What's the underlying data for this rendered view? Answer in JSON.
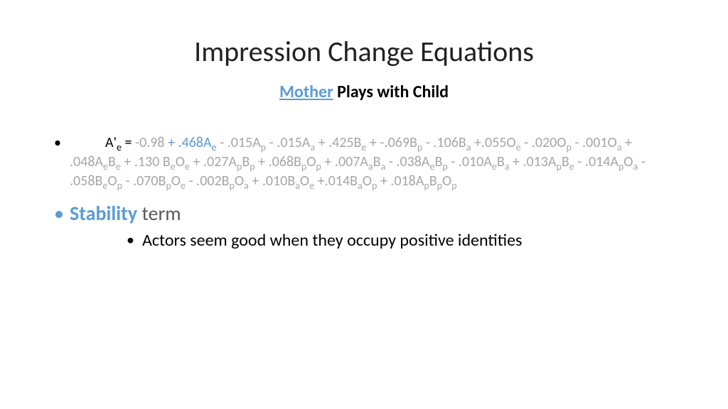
{
  "colors": {
    "accent_blue": "#5b9bd5",
    "gray_text": "#a6a6a6",
    "dark_gray": "#595959",
    "black": "#000000",
    "background": "#ffffff"
  },
  "title": "Impression Change Equations",
  "subtitle": {
    "highlighted": "Mother",
    "rest": " Plays with Child"
  },
  "equation": {
    "lhs": "A'",
    "lhs_sub": "e",
    "equals": " = ",
    "constant": "-0.98",
    "highlighted_term": " + .468A",
    "highlighted_sub": "e",
    "rest_html": " - .015A<sub>p</sub> - .015A<sub>a</sub> + .425B<sub>e</sub> + -.069B<sub>p</sub> - .106B<sub>a</sub> +.055O<sub>e</sub> - .020O<sub>p</sub> - .001O<sub>a</sub> + .048A<sub>e</sub>B<sub>e</sub> + .130 B<sub>e</sub>O<sub>e</sub> + .027A<sub>p</sub>B<sub>p</sub> + .068B<sub>p</sub>O<sub>p</sub> + .007A<sub>a</sub>B<sub>a</sub> - .038A<sub>e</sub>B<sub>p</sub> - .010A<sub>e</sub>B<sub>a</sub> + .013A<sub>p</sub>B<sub>e</sub> - .014A<sub>p</sub>O<sub>a</sub> - .058B<sub>e</sub>O<sub>p</sub> - .070B<sub>p</sub>O<sub>e</sub> - .002B<sub>p</sub>O<sub>a</sub> + .010B<sub>a</sub>O<sub>e</sub> +.014B<sub>a</sub>O<sub>p</sub> + .018A<sub>p</sub>B<sub>p</sub>O<sub>p</sub>"
  },
  "stability": {
    "label": "Stability",
    "rest": " term"
  },
  "sub_bullet": "Actors seem good when they occupy positive identities"
}
